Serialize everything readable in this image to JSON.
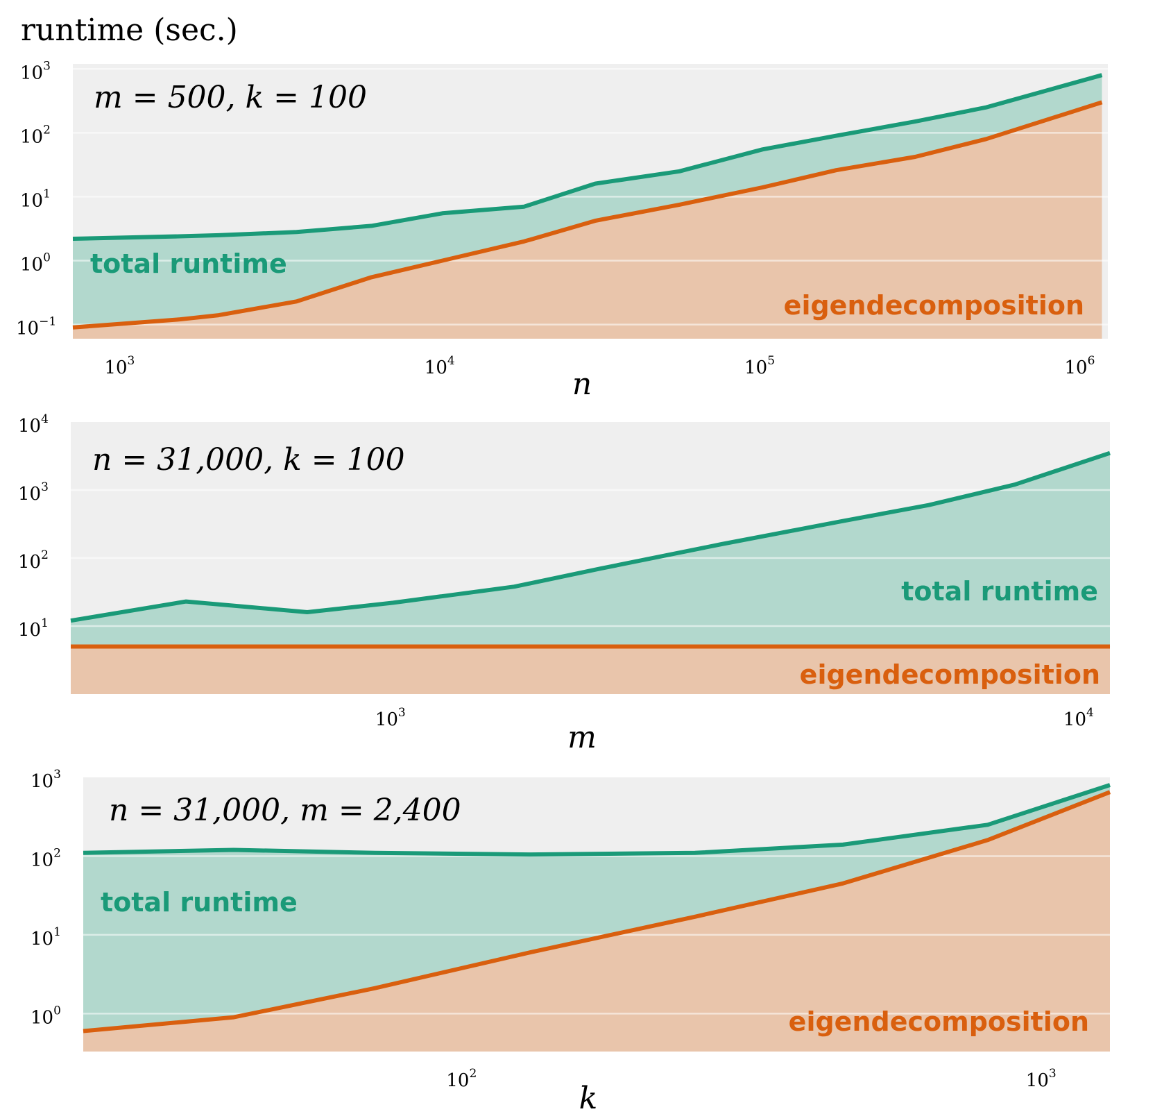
{
  "figure": {
    "ylabel": "runtime (sec.)",
    "colors": {
      "total": "#1a9a78",
      "total_fill": "#b2d8cd",
      "eigen": "#d95f0e",
      "eigen_fill": "#e9c5ab",
      "panel_bg": "#efefef",
      "grid": "#ffffff"
    }
  },
  "chart_data": [
    {
      "type": "area",
      "params_label": "m = 500, k = 100",
      "xlabel": "n",
      "xscale": "log",
      "yscale": "log",
      "xlim": [
        700,
        1200000
      ],
      "ylim": [
        0.06,
        1200
      ],
      "xticks": [
        {
          "base": "10",
          "exp": "3",
          "value": 1000
        },
        {
          "base": "10",
          "exp": "4",
          "value": 10000
        },
        {
          "base": "10",
          "exp": "5",
          "value": 100000
        },
        {
          "base": "10",
          "exp": "6",
          "value": 1000000
        }
      ],
      "yticks": [
        {
          "base": "10",
          "exp": "−1",
          "value": 0.1
        },
        {
          "base": "10",
          "exp": "0",
          "value": 1
        },
        {
          "base": "10",
          "exp": "1",
          "value": 10
        },
        {
          "base": "10",
          "exp": "2",
          "value": 100
        },
        {
          "base": "10",
          "exp": "3",
          "value": 1000
        }
      ],
      "x": [
        700,
        1500,
        2000,
        3500,
        6000,
        10000,
        18000,
        30000,
        55000,
        100000,
        170000,
        300000,
        500000,
        1150000
      ],
      "series": [
        {
          "name": "total runtime",
          "values": [
            2.2,
            2.4,
            2.5,
            2.8,
            3.5,
            5.5,
            7,
            16,
            25,
            55,
            90,
            150,
            250,
            800
          ]
        },
        {
          "name": "eigendecomposition",
          "values": [
            0.09,
            0.12,
            0.14,
            0.23,
            0.55,
            1.0,
            2.0,
            4.2,
            7.5,
            14,
            26,
            42,
            80,
            300
          ]
        }
      ],
      "legend": [
        {
          "series": "total runtime",
          "placement": "left"
        },
        {
          "series": "eigendecomposition",
          "placement": "bottom-right"
        }
      ]
    },
    {
      "type": "area",
      "params_label": "n = 31,000, k = 100",
      "xlabel": "m",
      "xscale": "log",
      "yscale": "log",
      "xlim": [
        340,
        11000
      ],
      "ylim": [
        1,
        10000
      ],
      "xticks": [
        {
          "base": "10",
          "exp": "3",
          "value": 1000
        },
        {
          "base": "10",
          "exp": "4",
          "value": 10000
        }
      ],
      "yticks": [
        {
          "base": "10",
          "exp": "1",
          "value": 10
        },
        {
          "base": "10",
          "exp": "2",
          "value": 100
        },
        {
          "base": "10",
          "exp": "3",
          "value": 1000
        },
        {
          "base": "10",
          "exp": "4",
          "value": 10000
        }
      ],
      "x": [
        340,
        500,
        750,
        1000,
        1500,
        2000,
        3000,
        4500,
        6000,
        8000,
        11000
      ],
      "series": [
        {
          "name": "total runtime",
          "values": [
            12,
            23,
            16,
            22,
            38,
            70,
            160,
            350,
            600,
            1200,
            3500
          ]
        },
        {
          "name": "eigendecomposition",
          "values": [
            5,
            5,
            5,
            5,
            5,
            5,
            5,
            5,
            5,
            5,
            5
          ]
        }
      ],
      "legend": [
        {
          "series": "total runtime",
          "placement": "right"
        },
        {
          "series": "eigendecomposition",
          "placement": "bottom-right"
        }
      ]
    },
    {
      "type": "area",
      "params_label": "n = 31,000, m = 2,400",
      "xlabel": "k",
      "xscale": "log",
      "yscale": "log",
      "xlim": [
        22,
        1300
      ],
      "ylim": [
        0.33,
        1000
      ],
      "xticks": [
        {
          "base": "10",
          "exp": "2",
          "value": 100
        },
        {
          "base": "10",
          "exp": "3",
          "value": 1000
        }
      ],
      "yticks": [
        {
          "base": "10",
          "exp": "0",
          "value": 1
        },
        {
          "base": "10",
          "exp": "1",
          "value": 10
        },
        {
          "base": "10",
          "exp": "2",
          "value": 100
        },
        {
          "base": "10",
          "exp": "3",
          "value": 1000
        }
      ],
      "x": [
        22,
        40,
        70,
        130,
        250,
        450,
        800,
        1300
      ],
      "series": [
        {
          "name": "total runtime",
          "values": [
            110,
            120,
            110,
            105,
            110,
            140,
            250,
            800
          ]
        },
        {
          "name": "eigendecomposition",
          "values": [
            0.6,
            0.9,
            2.1,
            6,
            17,
            45,
            160,
            650
          ]
        }
      ],
      "legend": [
        {
          "series": "total runtime",
          "placement": "left"
        },
        {
          "series": "eigendecomposition",
          "placement": "bottom-right"
        }
      ]
    }
  ]
}
